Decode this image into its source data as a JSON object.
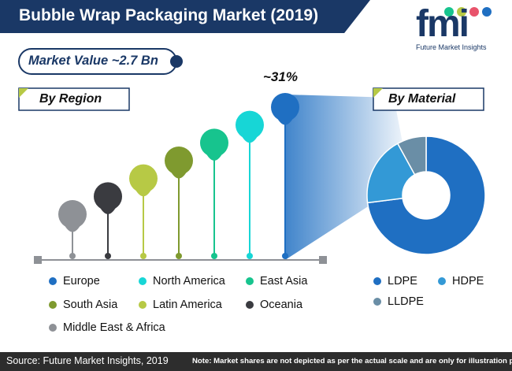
{
  "title": "Bubble Wrap Packaging Market (2019)",
  "market_value_label": "Market Value ~2.7 Bn",
  "region_heading": "By Region",
  "material_heading": "By Material",
  "top_annotation": "~31%",
  "logo": {
    "text": "fmi",
    "subtitle": "Future Market Insights"
  },
  "footer": {
    "source": "Source: Future Market Insights, 2019",
    "note": "Note: Market shares are not depicted as per the actual scale and are only for illustration purposes."
  },
  "colors": {
    "navy": "#1a3866",
    "middle_east_africa": "#8e9196",
    "oceania": "#3a3b40",
    "latin_america": "#b7c945",
    "south_asia": "#7f9a2f",
    "east_asia": "#17c48e",
    "north_america": "#17d6d6",
    "europe": "#1f6fc2",
    "ldpe": "#1f6fc2",
    "hdpe": "#3399d6",
    "lldpe": "#6a8ea6"
  },
  "chart_data": [
    {
      "type": "bar",
      "title": "By Region",
      "categories": [
        "Middle East & Africa",
        "Oceania",
        "Latin America",
        "South Asia",
        "East Asia",
        "North America",
        "Europe"
      ],
      "values": [
        1,
        2,
        3,
        4,
        5,
        6,
        7
      ],
      "annotation": {
        "category": "Europe",
        "label": "~31%"
      },
      "note": "relative order only; shares not to scale"
    },
    {
      "type": "pie",
      "title": "By Material",
      "donut": true,
      "labels": [
        "LDPE",
        "HDPE",
        "LLDPE"
      ],
      "values": [
        73,
        19,
        8
      ]
    }
  ],
  "region_legend": [
    {
      "label": "Europe",
      "color": "#1f6fc2"
    },
    {
      "label": "North America",
      "color": "#17d6d6"
    },
    {
      "label": "East Asia",
      "color": "#17c48e"
    },
    {
      "label": "South Asia",
      "color": "#7f9a2f"
    },
    {
      "label": "Latin America",
      "color": "#b7c945"
    },
    {
      "label": "Oceania",
      "color": "#3a3b40"
    },
    {
      "label": "Middle East & Africa",
      "color": "#8e9196"
    }
  ],
  "material_legend": [
    {
      "label": "LDPE",
      "color": "#1f6fc2"
    },
    {
      "label": "HDPE",
      "color": "#3399d6"
    },
    {
      "label": "LLDPE",
      "color": "#6a8ea6"
    }
  ]
}
